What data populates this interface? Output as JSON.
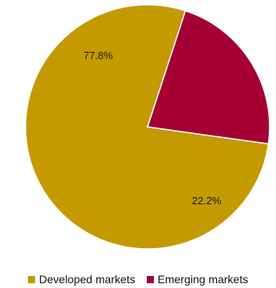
{
  "chart_data": {
    "type": "pie",
    "slices": [
      {
        "label": "Developed markets",
        "value": 77.8,
        "display": "77.8%",
        "color": "#C49A00"
      },
      {
        "label": "Emerging markets",
        "value": 22.2,
        "display": "22.2%",
        "color": "#A50034"
      }
    ],
    "legend_position": "bottom",
    "start_angle": "3 o'clock, clockwise",
    "title": ""
  },
  "legend": {
    "items": [
      {
        "label": "Developed markets",
        "color": "#C49A00"
      },
      {
        "label": "Emerging markets",
        "color": "#A50034"
      }
    ]
  }
}
